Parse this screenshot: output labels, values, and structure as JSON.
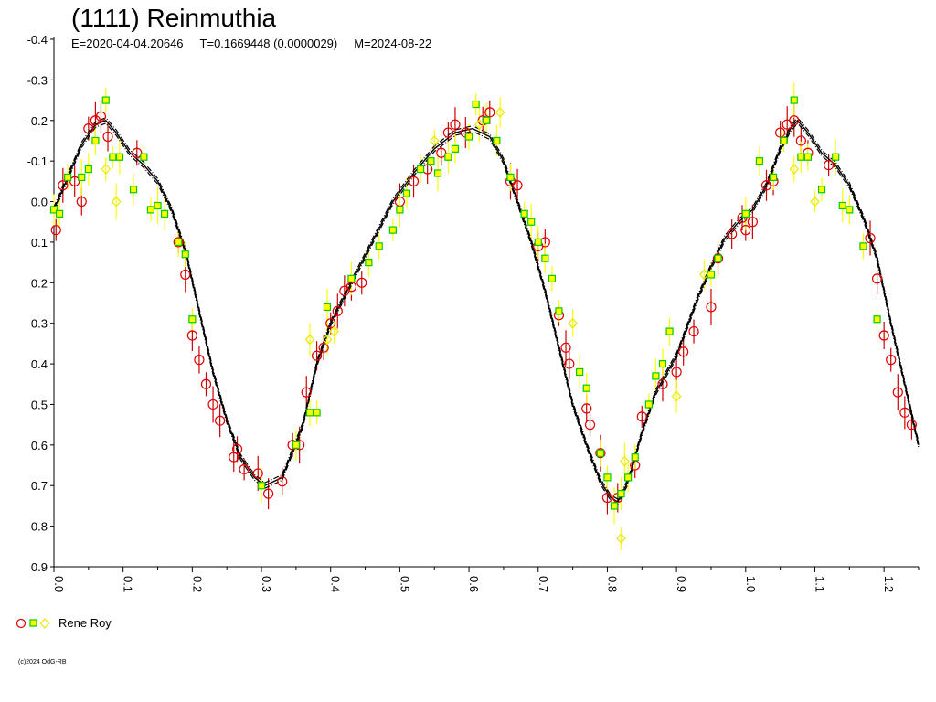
{
  "header": {
    "title": "(1111) Reinmuthia",
    "epoch": "E=2020-04-04.20646",
    "period": "T=0.1669448 (0.0000029)",
    "date": "M=2024-08-22"
  },
  "legend": {
    "observer": "Rene Roy"
  },
  "footer": {
    "credit": "(c)2024 OdG-RB"
  },
  "colors": {
    "series1": "#e00000",
    "series2": "#00cc00",
    "series2_fill": "#ffff00",
    "series3": "#e8e800",
    "errorbar1": "#cc0000",
    "errorbar2": "#ffff00",
    "curve": "#000000"
  },
  "chart_data": {
    "type": "scatter",
    "title": "(1111) Reinmuthia",
    "xlabel": "",
    "ylabel": "",
    "xlim": [
      0.0,
      1.25
    ],
    "ylim": [
      -0.4,
      0.9
    ],
    "y_inverted": true,
    "x_ticks": [
      "0.0",
      "0.1",
      "0.2",
      "0.3",
      "0.4",
      "0.5",
      "0.6",
      "0.7",
      "0.8",
      "0.9",
      "1.0",
      "1.1",
      "1.2"
    ],
    "y_ticks": [
      "-0.4",
      "-0.3",
      "-0.2",
      "-0.1",
      "0.0",
      "0.1",
      "0.2",
      "0.3",
      "0.4",
      "0.5",
      "0.6",
      "0.7",
      "0.8",
      "0.9"
    ],
    "fit_curve": {
      "x": [
        0.0,
        0.02,
        0.04,
        0.06,
        0.075,
        0.09,
        0.11,
        0.13,
        0.15,
        0.17,
        0.19,
        0.21,
        0.23,
        0.25,
        0.27,
        0.29,
        0.305,
        0.33,
        0.36,
        0.38,
        0.4,
        0.43,
        0.46,
        0.49,
        0.52,
        0.55,
        0.58,
        0.605,
        0.63,
        0.65,
        0.67,
        0.69,
        0.71,
        0.73,
        0.75,
        0.77,
        0.79,
        0.805,
        0.815,
        0.83,
        0.85,
        0.87,
        0.9,
        0.93,
        0.95,
        0.97,
        0.99,
        1.01,
        1.03,
        1.05,
        1.065,
        1.075,
        1.09,
        1.11,
        1.13,
        1.15,
        1.17,
        1.19,
        1.21,
        1.23,
        1.25
      ],
      "y": [
        0.02,
        -0.06,
        -0.14,
        -0.19,
        -0.2,
        -0.17,
        -0.12,
        -0.09,
        -0.05,
        0.02,
        0.12,
        0.27,
        0.42,
        0.54,
        0.63,
        0.68,
        0.7,
        0.68,
        0.55,
        0.4,
        0.3,
        0.2,
        0.1,
        0.0,
        -0.07,
        -0.13,
        -0.17,
        -0.18,
        -0.16,
        -0.1,
        0.0,
        0.1,
        0.22,
        0.36,
        0.5,
        0.6,
        0.69,
        0.73,
        0.74,
        0.69,
        0.57,
        0.47,
        0.38,
        0.24,
        0.16,
        0.09,
        0.05,
        0.02,
        -0.04,
        -0.13,
        -0.18,
        -0.2,
        -0.17,
        -0.12,
        -0.09,
        -0.04,
        0.04,
        0.14,
        0.3,
        0.45,
        0.6
      ]
    },
    "series": [
      {
        "name": "Rene Roy",
        "marker": "circle",
        "color": "#e00000",
        "points": [
          [
            0.003,
            0.07
          ],
          [
            0.013,
            -0.04
          ],
          [
            0.03,
            -0.05
          ],
          [
            0.04,
            0.0
          ],
          [
            0.05,
            -0.18
          ],
          [
            0.06,
            -0.2
          ],
          [
            0.068,
            -0.21
          ],
          [
            0.078,
            -0.16
          ],
          [
            0.12,
            -0.12
          ],
          [
            0.18,
            0.1
          ],
          [
            0.19,
            0.18
          ],
          [
            0.2,
            0.33
          ],
          [
            0.21,
            0.39
          ],
          [
            0.22,
            0.45
          ],
          [
            0.23,
            0.5
          ],
          [
            0.24,
            0.54
          ],
          [
            0.26,
            0.63
          ],
          [
            0.265,
            0.61
          ],
          [
            0.275,
            0.66
          ],
          [
            0.295,
            0.67
          ],
          [
            0.31,
            0.72
          ],
          [
            0.33,
            0.69
          ],
          [
            0.345,
            0.6
          ],
          [
            0.355,
            0.6
          ],
          [
            0.365,
            0.47
          ],
          [
            0.38,
            0.38
          ],
          [
            0.39,
            0.36
          ],
          [
            0.4,
            0.3
          ],
          [
            0.41,
            0.27
          ],
          [
            0.42,
            0.22
          ],
          [
            0.43,
            0.21
          ],
          [
            0.445,
            0.2
          ],
          [
            0.5,
            0.0
          ],
          [
            0.52,
            -0.05
          ],
          [
            0.54,
            -0.08
          ],
          [
            0.56,
            -0.12
          ],
          [
            0.57,
            -0.17
          ],
          [
            0.58,
            -0.19
          ],
          [
            0.595,
            -0.17
          ],
          [
            0.62,
            -0.2
          ],
          [
            0.63,
            -0.22
          ],
          [
            0.66,
            -0.05
          ],
          [
            0.67,
            -0.04
          ],
          [
            0.7,
            0.11
          ],
          [
            0.71,
            0.1
          ],
          [
            0.73,
            0.28
          ],
          [
            0.74,
            0.36
          ],
          [
            0.745,
            0.4
          ],
          [
            0.77,
            0.51
          ],
          [
            0.775,
            0.55
          ],
          [
            0.79,
            0.62
          ],
          [
            0.8,
            0.73
          ],
          [
            0.815,
            0.73
          ],
          [
            0.84,
            0.65
          ],
          [
            0.85,
            0.53
          ],
          [
            0.88,
            0.45
          ],
          [
            0.9,
            0.42
          ],
          [
            0.91,
            0.37
          ],
          [
            0.925,
            0.32
          ],
          [
            0.95,
            0.26
          ],
          [
            0.96,
            0.14
          ],
          [
            0.98,
            0.08
          ],
          [
            0.995,
            0.04
          ],
          [
            1.0,
            0.07
          ],
          [
            1.01,
            0.05
          ],
          [
            1.03,
            -0.04
          ],
          [
            1.04,
            -0.05
          ],
          [
            1.05,
            -0.17
          ],
          [
            1.06,
            -0.19
          ],
          [
            1.07,
            -0.2
          ],
          [
            1.08,
            -0.15
          ],
          [
            1.09,
            -0.12
          ],
          [
            1.12,
            -0.09
          ],
          [
            1.18,
            0.09
          ],
          [
            1.19,
            0.19
          ],
          [
            1.2,
            0.33
          ],
          [
            1.21,
            0.39
          ],
          [
            1.22,
            0.47
          ],
          [
            1.23,
            0.52
          ],
          [
            1.24,
            0.55
          ]
        ]
      },
      {
        "name": "Rene Roy",
        "marker": "square",
        "color": "#00cc00",
        "points": [
          [
            0.0,
            0.02
          ],
          [
            0.008,
            0.03
          ],
          [
            0.02,
            -0.06
          ],
          [
            0.04,
            -0.06
          ],
          [
            0.05,
            -0.08
          ],
          [
            0.06,
            -0.15
          ],
          [
            0.075,
            -0.25
          ],
          [
            0.085,
            -0.11
          ],
          [
            0.095,
            -0.11
          ],
          [
            0.115,
            -0.03
          ],
          [
            0.13,
            -0.11
          ],
          [
            0.14,
            0.02
          ],
          [
            0.15,
            0.01
          ],
          [
            0.16,
            0.03
          ],
          [
            0.18,
            0.1
          ],
          [
            0.19,
            0.13
          ],
          [
            0.2,
            0.29
          ],
          [
            0.3,
            0.7
          ],
          [
            0.35,
            0.6
          ],
          [
            0.37,
            0.52
          ],
          [
            0.38,
            0.52
          ],
          [
            0.395,
            0.26
          ],
          [
            0.43,
            0.19
          ],
          [
            0.455,
            0.15
          ],
          [
            0.47,
            0.11
          ],
          [
            0.49,
            0.07
          ],
          [
            0.5,
            0.02
          ],
          [
            0.51,
            -0.02
          ],
          [
            0.53,
            -0.08
          ],
          [
            0.545,
            -0.1
          ],
          [
            0.555,
            -0.07
          ],
          [
            0.57,
            -0.11
          ],
          [
            0.58,
            -0.13
          ],
          [
            0.6,
            -0.16
          ],
          [
            0.61,
            -0.24
          ],
          [
            0.625,
            -0.2
          ],
          [
            0.64,
            -0.15
          ],
          [
            0.66,
            -0.06
          ],
          [
            0.68,
            0.03
          ],
          [
            0.69,
            0.05
          ],
          [
            0.7,
            0.1
          ],
          [
            0.71,
            0.14
          ],
          [
            0.72,
            0.19
          ],
          [
            0.73,
            0.27
          ],
          [
            0.76,
            0.42
          ],
          [
            0.77,
            0.46
          ],
          [
            0.79,
            0.62
          ],
          [
            0.8,
            0.68
          ],
          [
            0.81,
            0.75
          ],
          [
            0.82,
            0.72
          ],
          [
            0.83,
            0.68
          ],
          [
            0.84,
            0.63
          ],
          [
            0.86,
            0.5
          ],
          [
            0.87,
            0.43
          ],
          [
            0.88,
            0.4
          ],
          [
            0.89,
            0.32
          ],
          [
            0.95,
            0.18
          ],
          [
            0.96,
            0.14
          ],
          [
            1.0,
            0.03
          ],
          [
            1.02,
            -0.1
          ],
          [
            1.04,
            -0.06
          ],
          [
            1.055,
            -0.15
          ],
          [
            1.07,
            -0.25
          ],
          [
            1.08,
            -0.11
          ],
          [
            1.09,
            -0.11
          ],
          [
            1.11,
            -0.03
          ],
          [
            1.13,
            -0.11
          ],
          [
            1.14,
            0.01
          ],
          [
            1.15,
            0.02
          ],
          [
            1.17,
            0.11
          ],
          [
            1.19,
            0.29
          ]
        ]
      },
      {
        "name": "Rene Roy",
        "marker": "diamond",
        "color": "#e8e800",
        "points": [
          [
            0.075,
            -0.08
          ],
          [
            0.09,
            0.0
          ],
          [
            0.37,
            0.34
          ],
          [
            0.395,
            0.34
          ],
          [
            0.405,
            0.32
          ],
          [
            0.55,
            -0.15
          ],
          [
            0.615,
            -0.19
          ],
          [
            0.645,
            -0.22
          ],
          [
            0.75,
            0.3
          ],
          [
            0.82,
            0.83
          ],
          [
            0.825,
            0.64
          ],
          [
            0.9,
            0.48
          ],
          [
            0.94,
            0.18
          ],
          [
            1.07,
            -0.08
          ],
          [
            1.1,
            0.0
          ]
        ]
      }
    ]
  }
}
